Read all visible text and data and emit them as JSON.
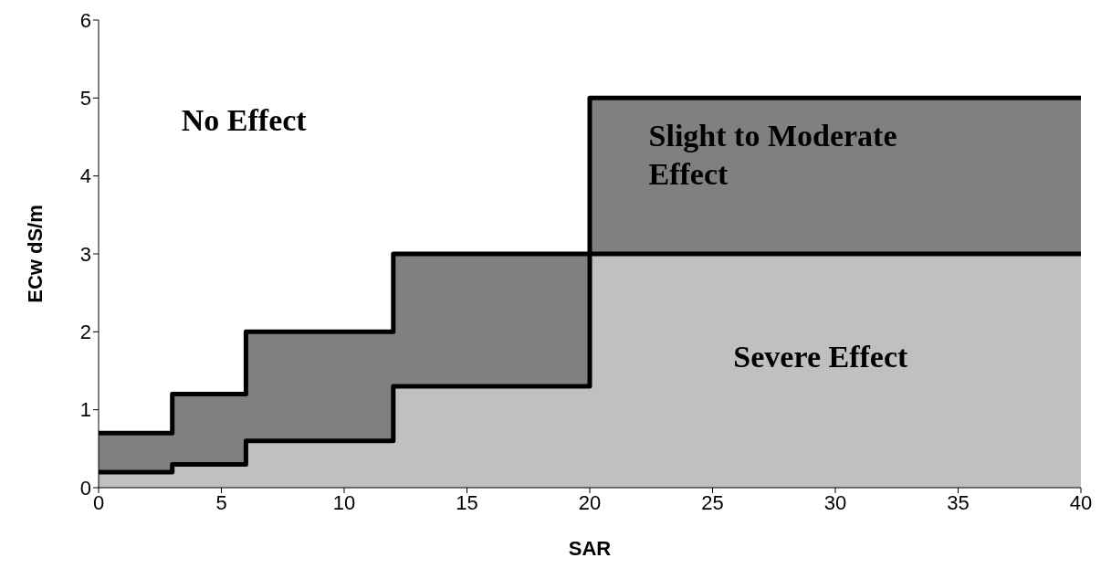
{
  "chart_data": {
    "type": "step",
    "xlabel": "SAR",
    "ylabel": "ECw dS/m",
    "x": [
      0,
      3,
      6,
      12,
      20,
      40
    ],
    "series": [
      {
        "type": "area",
        "color": "#808080",
        "values": [
          0.7,
          1.2,
          2,
          3,
          5,
          5
        ]
      },
      {
        "type": "area",
        "color": "#c0c0c0",
        "values": [
          0.2,
          0.3,
          0.6,
          1.3,
          3,
          3
        ]
      },
      {
        "type": "step",
        "color": "#000000",
        "values": [
          0.7,
          1.2,
          2,
          3,
          5,
          5
        ]
      },
      {
        "type": "step",
        "color": "#000000",
        "values": [
          0.2,
          0.3,
          0.6,
          1.3,
          3,
          3
        ]
      }
    ],
    "xlim": [
      0,
      40
    ],
    "xticks": [
      0,
      5,
      10,
      15,
      20,
      25,
      30,
      35,
      40
    ],
    "ylim": [
      0,
      6
    ],
    "yticks": [
      0,
      1,
      2,
      3,
      4,
      5,
      6
    ],
    "grid": false,
    "legend": false,
    "annotations": [
      "No Effect",
      "Slight to Moderate Effect",
      "Severe Effect"
    ]
  }
}
